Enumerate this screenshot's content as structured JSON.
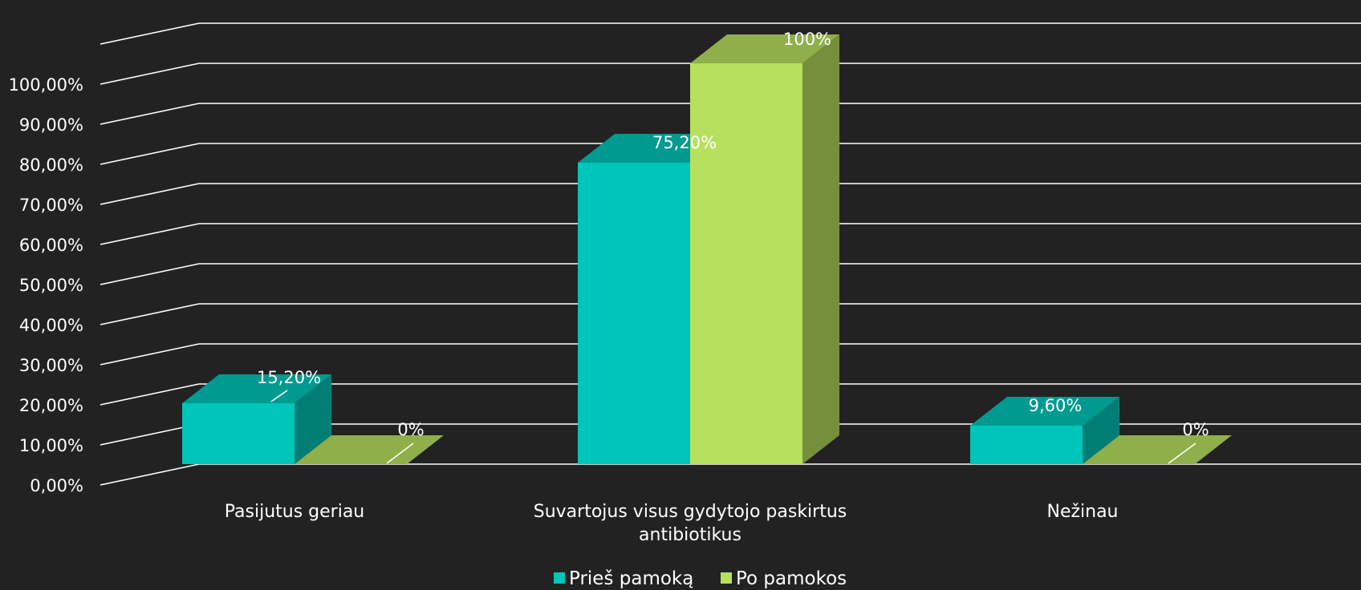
{
  "chart_data": {
    "type": "bar",
    "categories": [
      "Pasijutus geriau",
      "Suvartojus visus gydytojo paskirtus antibiotikus",
      "Nežinau"
    ],
    "series": [
      {
        "name": "Prieš pamoką",
        "values": [
          15.2,
          75.2,
          9.6
        ],
        "labels": [
          "15,20%",
          "75,20%",
          "9,60%"
        ],
        "color": "#00C5B9"
      },
      {
        "name": "Po pamokos",
        "values": [
          0,
          100,
          0
        ],
        "labels": [
          "0%",
          "100%",
          "0%"
        ],
        "color": "#B7E05F"
      }
    ],
    "y_ticks": [
      "0,00%",
      "10,00%",
      "20,00%",
      "30,00%",
      "40,00%",
      "50,00%",
      "60,00%",
      "70,00%",
      "80,00%",
      "90,00%",
      "100,00%"
    ],
    "ylim": [
      0,
      110
    ],
    "grid": true,
    "legend": "bottom",
    "style": "3d-clustered-column",
    "background": "#222222"
  }
}
